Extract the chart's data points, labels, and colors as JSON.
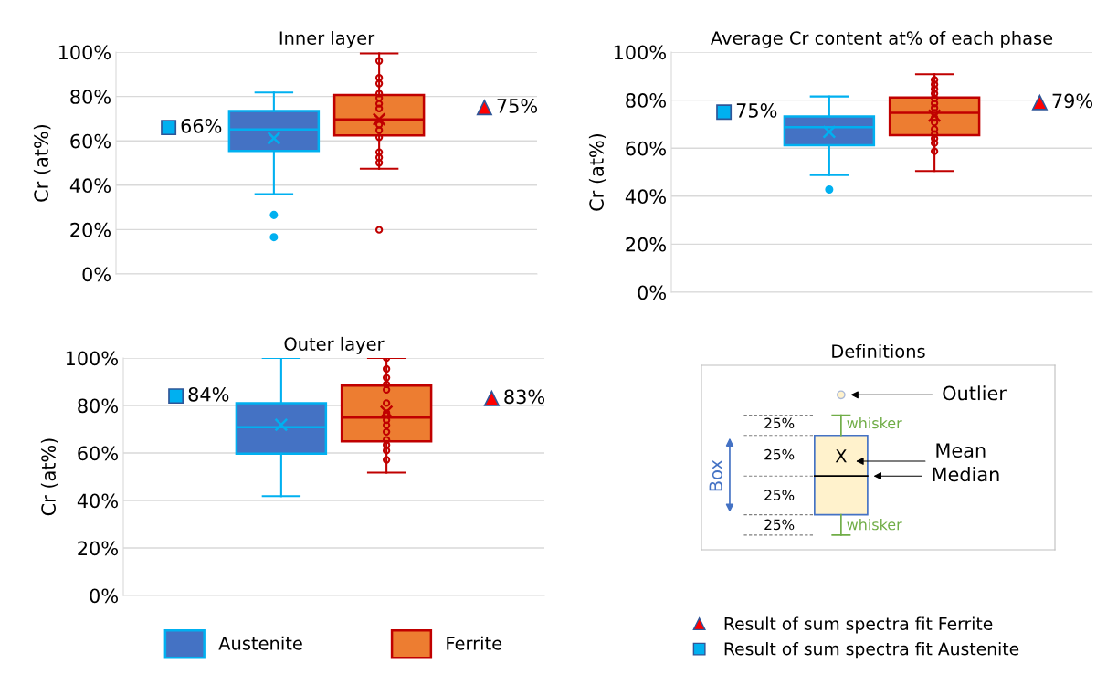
{
  "chart_data": [
    {
      "type": "box",
      "title": "Inner layer",
      "ylabel": "Cr (at%)",
      "categories": [
        null,
        null,
        null,
        null
      ],
      "ylim": [
        0,
        100
      ],
      "yticks": [
        {
          "value": 0,
          "label": "0%"
        },
        {
          "value": 20,
          "label": "20%"
        },
        {
          "value": 40,
          "label": "40%"
        },
        {
          "value": 60,
          "label": "60%"
        },
        {
          "value": 80,
          "label": "80%"
        },
        {
          "value": 100,
          "label": "100%"
        }
      ],
      "grid": "y",
      "series": [
        {
          "type": "box",
          "color": "#4472c4",
          "boxes": [
            null,
            {
              "low": 36.0,
              "q1": 55.5,
              "median": 65.1,
              "q3": 73.5,
              "high": 81.8,
              "mean": 61.2,
              "outliers": [
                26.6,
                16.6
              ]
            },
            null,
            null
          ]
        },
        {
          "type": "box",
          "color": "#ed7d31",
          "boxes": [
            null,
            null,
            {
              "low": 47.4,
              "q1": 62.4,
              "median": 69.7,
              "q3": 80.7,
              "high": 99.4,
              "mean": 69.7,
              "outliers": [
                96.0,
                88.4,
                85.8,
                81.3,
                79.3,
                76.7,
                74.6,
                67.3,
                64.8,
                61.6,
                54.9,
                52.5,
                50.1,
                19.9
              ]
            },
            null
          ]
        },
        {
          "type": "scatter",
          "marker": "square",
          "color": "#00b0f0",
          "values": [
            66,
            null,
            null,
            null
          ],
          "value_labels": [
            "66%",
            null,
            null,
            null
          ]
        },
        {
          "type": "scatter",
          "marker": "triangle",
          "color": "#ff0000",
          "values": [
            null,
            null,
            null,
            75
          ],
          "value_labels": [
            null,
            null,
            null,
            "75%"
          ]
        }
      ]
    },
    {
      "type": "box",
      "title": "Outer layer",
      "ylabel": "Cr (at%)",
      "categories": [
        null,
        null,
        null,
        null
      ],
      "ylim": [
        0,
        100
      ],
      "yticks": [
        {
          "value": 0,
          "label": "0%"
        },
        {
          "value": 20,
          "label": "20%"
        },
        {
          "value": 40,
          "label": "40%"
        },
        {
          "value": 60,
          "label": "60%"
        },
        {
          "value": 80,
          "label": "80%"
        },
        {
          "value": 100,
          "label": "100%"
        }
      ],
      "grid": "y",
      "legend": "bottom",
      "series": [
        {
          "type": "box",
          "name": "Austenite",
          "color": "#4472c4",
          "boxes": [
            null,
            {
              "low": 41.8,
              "q1": 59.7,
              "median": 70.9,
              "q3": 81.0,
              "high": 100,
              "mean": 71.9
            },
            null,
            null
          ]
        },
        {
          "type": "box",
          "name": "Ferrite",
          "color": "#ed7d31",
          "boxes": [
            null,
            null,
            {
              "low": 51.7,
              "q1": 64.9,
              "median": 74.9,
              "q3": 88.4,
              "high": 100,
              "mean": 77.4,
              "outliers": [
                100,
                95.4,
                91.7,
                88.9,
                86.6,
                81.0,
                76.8,
                73.8,
                71.7,
                68.9,
                65.5,
                63.4,
                61.0,
                57.1
              ]
            },
            null
          ]
        },
        {
          "type": "scatter",
          "name": "Result of sum spectra fit Austenite",
          "marker": "square",
          "color": "#00b0f0",
          "values": [
            84,
            null,
            null,
            null
          ],
          "value_labels": [
            "84%",
            null,
            null,
            null
          ]
        },
        {
          "type": "scatter",
          "name": "Result of sum spectra fit Ferrite",
          "marker": "triangle",
          "color": "#ff0000",
          "values": [
            null,
            null,
            null,
            83
          ],
          "value_labels": [
            null,
            null,
            null,
            "83%"
          ]
        }
      ]
    },
    {
      "type": "box",
      "title": "Average Cr content at% of each phase",
      "ylabel": "Cr (at%)",
      "categories": [
        null,
        null,
        null,
        null
      ],
      "ylim": [
        0,
        100
      ],
      "yticks": [
        {
          "value": 0,
          "label": "0%"
        },
        {
          "value": 20,
          "label": "20%"
        },
        {
          "value": 40,
          "label": "40%"
        },
        {
          "value": 60,
          "label": "60%"
        },
        {
          "value": 80,
          "label": "80%"
        },
        {
          "value": 100,
          "label": "100%"
        }
      ],
      "grid": "y",
      "series": [
        {
          "type": "box",
          "color": "#4472c4",
          "boxes": [
            null,
            {
              "low": 48.8,
              "q1": 61.2,
              "median": 68.7,
              "q3": 73.2,
              "high": 81.5,
              "mean": 66.8,
              "outliers": [
                42.8
              ]
            },
            null,
            null
          ]
        },
        {
          "type": "box",
          "color": "#ed7d31",
          "boxes": [
            null,
            null,
            {
              "low": 50.5,
              "q1": 65.4,
              "median": 74.7,
              "q3": 81.1,
              "high": 90.8,
              "mean": 73.5,
              "outliers": [
                88.4,
                86.5,
                84.6,
                82.7,
                80.7,
                78.6,
                76.7,
                74.7,
                72.6,
                70.7,
                67.9,
                65.9,
                64.0,
                62.1,
                58.7
              ]
            },
            null
          ]
        },
        {
          "type": "scatter",
          "marker": "square",
          "color": "#00b0f0",
          "values": [
            75,
            null,
            null,
            null
          ],
          "value_labels": [
            "75%",
            null,
            null,
            null
          ]
        },
        {
          "type": "scatter",
          "marker": "triangle",
          "color": "#ff0000",
          "values": [
            null,
            null,
            null,
            79
          ],
          "value_labels": [
            null,
            null,
            null,
            "79%"
          ]
        }
      ]
    },
    {
      "type": "other",
      "title": "Definitions",
      "annotations": [
        "Outlier",
        "whisker",
        "whisker",
        "Mean",
        "Median",
        "Box",
        "25%",
        "25%",
        "25%",
        "25%",
        "X"
      ]
    }
  ]
}
